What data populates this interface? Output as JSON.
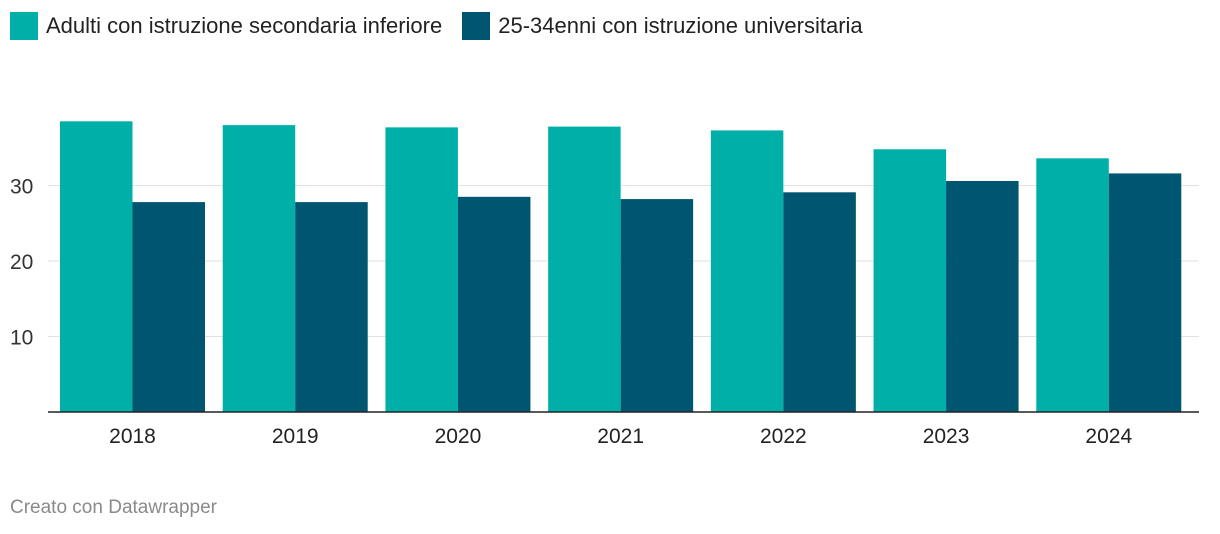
{
  "colors": {
    "series1": "#00b0a8",
    "series2": "#005670",
    "grid": "#e2e2e2",
    "axis": "#222222"
  },
  "chart_data": {
    "type": "bar",
    "categories": [
      "2018",
      "2019",
      "2020",
      "2021",
      "2022",
      "2023",
      "2024"
    ],
    "series": [
      {
        "name": "Adulti con istruzione secondaria inferiore",
        "values": [
          38.5,
          38.0,
          37.7,
          37.8,
          37.3,
          34.8,
          33.6
        ]
      },
      {
        "name": "25-34enni con istruzione universitaria",
        "values": [
          27.8,
          27.8,
          28.5,
          28.2,
          29.1,
          30.6,
          31.6
        ]
      }
    ],
    "yticks": [
      "10",
      "20",
      "30"
    ],
    "ylim": [
      0,
      40
    ],
    "grid": true,
    "legend_position": "top-left"
  },
  "footer": {
    "credit": "Creato con Datawrapper"
  }
}
